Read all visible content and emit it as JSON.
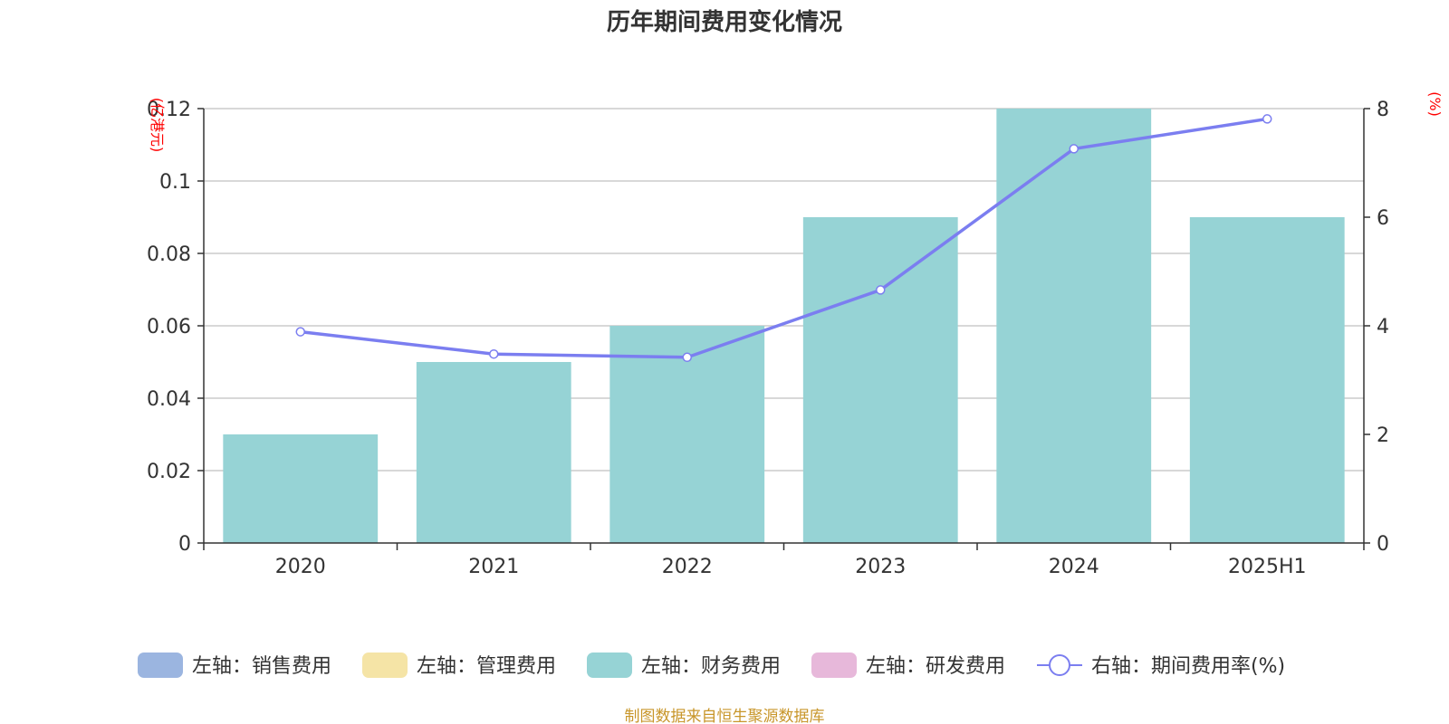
{
  "chart_data": {
    "type": "bar",
    "title": "历年期间费用变化情况",
    "categories": [
      "2020",
      "2021",
      "2022",
      "2023",
      "2024",
      "2025H1"
    ],
    "left_axis": {
      "unit_label": "(亿港元)",
      "ylim": [
        0,
        0.12
      ],
      "ticks": [
        "0",
        "0.02",
        "0.04",
        "0.06",
        "0.08",
        "0.1",
        "0.12"
      ]
    },
    "right_axis": {
      "unit_label": "(%)",
      "ylim": [
        0,
        8
      ],
      "ticks": [
        "0",
        "2",
        "4",
        "6",
        "8"
      ]
    },
    "series": [
      {
        "name": "左轴：销售费用",
        "type": "bar",
        "axis": "left",
        "color": "#9bb5e0",
        "values": [
          0,
          0,
          0,
          0,
          0,
          0
        ]
      },
      {
        "name": "左轴：管理费用",
        "type": "bar",
        "axis": "left",
        "color": "#f5e4a6",
        "values": [
          0,
          0,
          0,
          0,
          0,
          0
        ]
      },
      {
        "name": "左轴：财务费用",
        "type": "bar",
        "axis": "left",
        "color": "#96d3d5",
        "values": [
          0.03,
          0.05,
          0.06,
          0.09,
          0.12,
          0.09
        ]
      },
      {
        "name": "左轴：研发费用",
        "type": "bar",
        "axis": "left",
        "color": "#e7b8da",
        "values": [
          0,
          0,
          0,
          0,
          0,
          0
        ]
      },
      {
        "name": "右轴：期间费用率(%)",
        "type": "line",
        "axis": "right",
        "color": "#7b7ef0",
        "values": [
          3.89,
          3.48,
          3.42,
          4.66,
          7.26,
          7.81
        ]
      }
    ],
    "grid": true,
    "legend_position": "bottom"
  },
  "source_note": "制图数据来自恒生聚源数据库"
}
